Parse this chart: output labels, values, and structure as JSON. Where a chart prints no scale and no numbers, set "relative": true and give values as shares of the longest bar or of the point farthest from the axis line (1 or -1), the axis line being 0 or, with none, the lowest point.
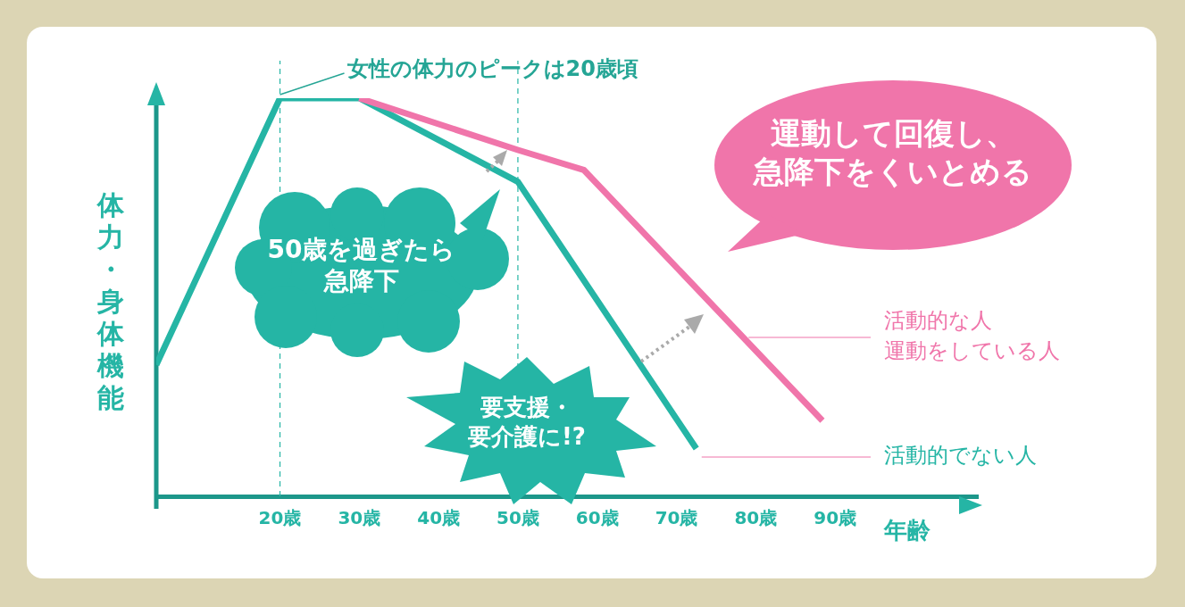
{
  "chart_data": {
    "type": "line",
    "relative": true,
    "xlabel": "年齢",
    "ylabel": "体力・身体機能",
    "legend": false,
    "grid": false,
    "marker": "none",
    "xlim": [
      4.4,
      108
    ],
    "xticks": [
      {
        "value": 20,
        "label": "20歳"
      },
      {
        "value": 30,
        "label": "30歳"
      },
      {
        "value": 40,
        "label": "40歳"
      },
      {
        "value": 50,
        "label": "50歳"
      },
      {
        "value": 60,
        "label": "60歳"
      },
      {
        "value": 70,
        "label": "70歳"
      },
      {
        "value": 80,
        "label": "80歳"
      },
      {
        "value": 90,
        "label": "90歳"
      }
    ],
    "series": [
      {
        "name": "活動的でない人",
        "color": "#25b5a5",
        "x": [
          4.4,
          20,
          30,
          50,
          72.5
        ],
        "values": [
          0.33,
          1,
          1,
          0.79,
          0.12
        ]
      },
      {
        "name": "活動的な人運動をしている人",
        "color": "#f075aa",
        "x": [
          30,
          50,
          58.3,
          88.4
        ],
        "values": [
          1,
          0.87,
          0.82,
          0.19
        ]
      }
    ],
    "ref_lines": [
      {
        "axis": "x",
        "value": 20,
        "color": "#25b5a5",
        "line_style": "dashed"
      },
      {
        "axis": "x",
        "value": 50,
        "color": "#25b5a5",
        "line_style": "dashed"
      }
    ],
    "annotations": [
      {
        "text": "女性の体力のピークは20歳頃",
        "x": 20,
        "y": 1
      },
      "運動して回復し、急降下をくいとめる",
      "50歳を過ぎたら急降下",
      "要支援・要介護に!?"
    ]
  }
}
